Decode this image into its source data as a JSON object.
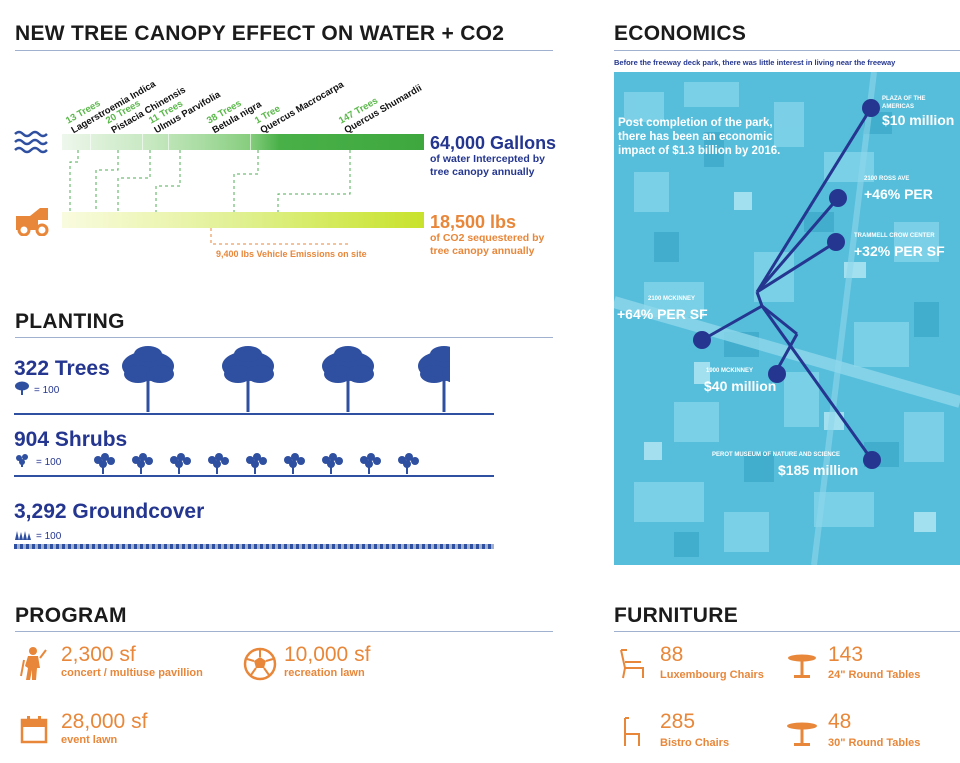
{
  "canopy": {
    "title": "NEW TREE CANOPY EFFECT ON WATER + CO2",
    "trees": [
      {
        "count": "13 Trees",
        "species": "Lagerstroemia Indica"
      },
      {
        "count": "20 Trees",
        "species": "Pistacia  Chinensis"
      },
      {
        "count": "11 Trees",
        "species": "Ulmus Parvifolia"
      },
      {
        "count": "38 Trees",
        "species": "Betula nigra"
      },
      {
        "count": "1 Tree",
        "species": "Quercus Macrocarpa"
      },
      {
        "count": "147 Trees",
        "species": "Quercus Shumardii"
      }
    ],
    "water": {
      "value": "64,000 Gallons",
      "line1": "of water Intercepted by",
      "line2": "tree canopy annually",
      "color": "#2f4fa0"
    },
    "co2": {
      "value": "18,500 lbs",
      "line1": "of CO2 sequestered by",
      "line2": "tree canopy annually",
      "color": "#e8873a"
    },
    "vehicle": "9,400 lbs  Vehicle Emissions on site",
    "icons": {
      "water": "water-waves-icon",
      "co2": "vehicle-icon"
    }
  },
  "planting": {
    "title": "PLANTING",
    "trees": {
      "label": "322 Trees",
      "legend": "= 100"
    },
    "shrubs": {
      "label": "904 Shrubs",
      "legend": "= 100"
    },
    "groundcover": {
      "label": "3,292 Groundcover",
      "legend": "= 100"
    }
  },
  "program": {
    "title": "PROGRAM",
    "items": [
      {
        "value": "2,300 sf",
        "label": "concert / multiuse pavillion",
        "icon": "performer-icon"
      },
      {
        "value": "10,000 sf",
        "label": "recreation lawn",
        "icon": "soccer-ball-icon"
      },
      {
        "value": "28,000 sf",
        "label": "event lawn",
        "icon": "calendar-icon"
      }
    ]
  },
  "economics": {
    "title": "ECONOMICS",
    "intro": "Before the freeway deck park, there was little interest in living near the freeway",
    "note_lines": [
      "Post completion of the park,",
      "there has been an economic",
      "impact of $1.3 billion by 2016."
    ],
    "points": [
      {
        "name": "PLAZA OF  THE",
        "name2": "AMERICAS",
        "value": "$10 million"
      },
      {
        "name": "2100 ROSS AVE",
        "value": "+46% PER"
      },
      {
        "name": "TRAMMELL CROW CENTER",
        "value": "+32% PER SF"
      },
      {
        "name": "2100 MCKINNEY",
        "value": "+64% PER SF"
      },
      {
        "name": "1900 MCKINNEY",
        "value": "$40 million"
      },
      {
        "name": "PEROT MUSEUM OF NATURE AND SCIENCE",
        "value": "$185 million"
      }
    ]
  },
  "furniture": {
    "title": "FURNITURE",
    "items": [
      {
        "value": "88",
        "label": "Luxembourg Chairs",
        "icon": "lounge-chair-icon"
      },
      {
        "value": "143",
        "label": "24\" Round Tables",
        "icon": "round-table-icon"
      },
      {
        "value": "285",
        "label": "Bistro Chairs",
        "icon": "bistro-chair-icon"
      },
      {
        "value": "48",
        "label": "30\" Round Tables",
        "icon": "round-table-icon"
      }
    ]
  }
}
